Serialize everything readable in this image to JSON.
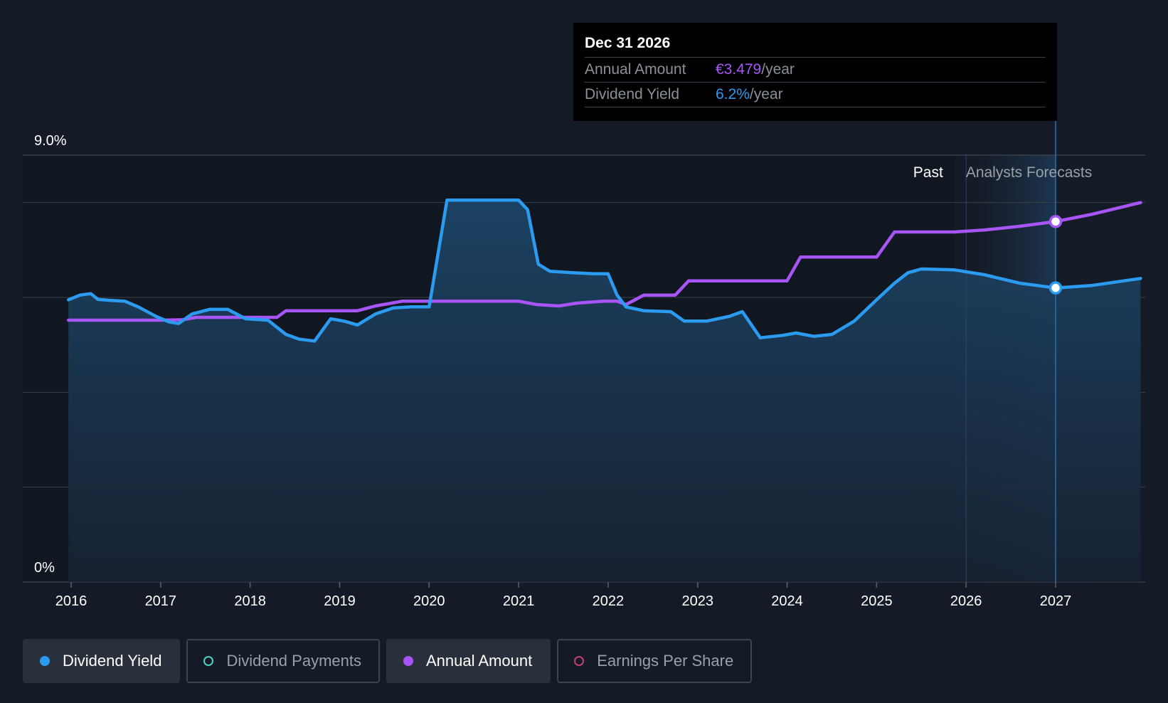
{
  "colors": {
    "background": "#151b26",
    "dividend_yield": "#2b9bf0",
    "annual_amount": "#a855f7",
    "dividend_payments": "#4fd1c5",
    "earnings_per_share": "#c2416b",
    "grid": "#3a404a",
    "text": "#ffffff",
    "muted": "#9aa0a8"
  },
  "tooltip": {
    "date": "Dec 31 2026",
    "rows": [
      {
        "label": "Annual Amount",
        "value": "€3.479",
        "unit": "/year"
      },
      {
        "label": "Dividend Yield",
        "value": "6.2%",
        "unit": "/year"
      }
    ]
  },
  "regions": {
    "past_label": "Past",
    "forecast_label": "Analysts Forecasts"
  },
  "legend": [
    {
      "label": "Dividend Yield",
      "active": true,
      "filled": true,
      "color": "#2b9bf0"
    },
    {
      "label": "Dividend Payments",
      "active": false,
      "filled": false,
      "color": "#4fd1c5"
    },
    {
      "label": "Annual Amount",
      "active": true,
      "filled": true,
      "color": "#a855f7"
    },
    {
      "label": "Earnings Per Share",
      "active": false,
      "filled": false,
      "color": "#c2416b"
    }
  ],
  "chart_data": {
    "type": "line",
    "title": "",
    "xlabel": "",
    "ylabel": "",
    "x_ticks": [
      "2016",
      "2017",
      "2018",
      "2019",
      "2020",
      "2021",
      "2022",
      "2023",
      "2024",
      "2025",
      "2026",
      "2027"
    ],
    "xlim": [
      2015.97,
      2027.95
    ],
    "ylim": [
      0,
      9.0
    ],
    "y_tick_labels": [
      {
        "value": 9.0,
        "label": "9.0%"
      },
      {
        "value": 0,
        "label": "0%"
      }
    ],
    "gridlines": [
      0,
      2,
      4,
      6,
      8,
      9
    ],
    "forecast_start": 2025.87,
    "highlight_start": 2026.0,
    "highlight_x": 2027.0,
    "legend_position": "bottom",
    "series": [
      {
        "name": "Dividend Yield",
        "unit": "%",
        "area": true,
        "highlight": 6.2,
        "points": [
          [
            2015.97,
            5.95
          ],
          [
            2016.1,
            6.05
          ],
          [
            2016.22,
            6.08
          ],
          [
            2016.3,
            5.96
          ],
          [
            2016.42,
            5.94
          ],
          [
            2016.6,
            5.92
          ],
          [
            2016.75,
            5.8
          ],
          [
            2016.95,
            5.6
          ],
          [
            2017.1,
            5.48
          ],
          [
            2017.2,
            5.45
          ],
          [
            2017.35,
            5.65
          ],
          [
            2017.55,
            5.75
          ],
          [
            2017.75,
            5.75
          ],
          [
            2017.95,
            5.55
          ],
          [
            2018.2,
            5.52
          ],
          [
            2018.4,
            5.22
          ],
          [
            2018.55,
            5.12
          ],
          [
            2018.72,
            5.08
          ],
          [
            2018.9,
            5.55
          ],
          [
            2019.05,
            5.5
          ],
          [
            2019.2,
            5.42
          ],
          [
            2019.4,
            5.65
          ],
          [
            2019.6,
            5.78
          ],
          [
            2019.8,
            5.8
          ],
          [
            2020.0,
            5.8
          ],
          [
            2020.2,
            8.05
          ],
          [
            2020.4,
            8.05
          ],
          [
            2020.6,
            8.05
          ],
          [
            2020.8,
            8.05
          ],
          [
            2021.0,
            8.05
          ],
          [
            2021.1,
            7.85
          ],
          [
            2021.22,
            6.7
          ],
          [
            2021.35,
            6.55
          ],
          [
            2021.6,
            6.52
          ],
          [
            2021.85,
            6.5
          ],
          [
            2022.0,
            6.5
          ],
          [
            2022.1,
            6.05
          ],
          [
            2022.2,
            5.8
          ],
          [
            2022.4,
            5.72
          ],
          [
            2022.7,
            5.7
          ],
          [
            2022.85,
            5.5
          ],
          [
            2023.1,
            5.5
          ],
          [
            2023.35,
            5.6
          ],
          [
            2023.5,
            5.7
          ],
          [
            2023.7,
            5.15
          ],
          [
            2023.95,
            5.2
          ],
          [
            2024.1,
            5.25
          ],
          [
            2024.3,
            5.18
          ],
          [
            2024.5,
            5.22
          ],
          [
            2024.75,
            5.5
          ],
          [
            2025.0,
            5.95
          ],
          [
            2025.2,
            6.3
          ],
          [
            2025.35,
            6.52
          ],
          [
            2025.5,
            6.6
          ],
          [
            2025.87,
            6.58
          ],
          [
            2026.2,
            6.48
          ],
          [
            2026.6,
            6.3
          ],
          [
            2027.0,
            6.2
          ],
          [
            2027.4,
            6.25
          ],
          [
            2027.95,
            6.4
          ]
        ]
      },
      {
        "name": "Annual Amount",
        "area": false,
        "highlight": 3.479,
        "points": [
          [
            2015.97,
            5.52
          ],
          [
            2016.5,
            5.52
          ],
          [
            2017.0,
            5.52
          ],
          [
            2017.25,
            5.53
          ],
          [
            2017.4,
            5.58
          ],
          [
            2017.7,
            5.58
          ],
          [
            2018.1,
            5.58
          ],
          [
            2018.3,
            5.58
          ],
          [
            2018.4,
            5.72
          ],
          [
            2018.8,
            5.72
          ],
          [
            2019.0,
            5.72
          ],
          [
            2019.2,
            5.72
          ],
          [
            2019.4,
            5.82
          ],
          [
            2019.7,
            5.92
          ],
          [
            2020.0,
            5.92
          ],
          [
            2020.5,
            5.92
          ],
          [
            2021.0,
            5.92
          ],
          [
            2021.2,
            5.85
          ],
          [
            2021.45,
            5.82
          ],
          [
            2021.65,
            5.88
          ],
          [
            2021.95,
            5.92
          ],
          [
            2022.1,
            5.92
          ],
          [
            2022.2,
            5.85
          ],
          [
            2022.4,
            6.05
          ],
          [
            2022.75,
            6.05
          ],
          [
            2022.9,
            6.35
          ],
          [
            2023.3,
            6.35
          ],
          [
            2023.7,
            6.35
          ],
          [
            2024.0,
            6.35
          ],
          [
            2024.15,
            6.85
          ],
          [
            2024.5,
            6.85
          ],
          [
            2025.0,
            6.85
          ],
          [
            2025.2,
            7.38
          ],
          [
            2025.6,
            7.38
          ],
          [
            2025.87,
            7.38
          ],
          [
            2026.2,
            7.42
          ],
          [
            2026.6,
            7.5
          ],
          [
            2027.0,
            7.6
          ],
          [
            2027.4,
            7.75
          ],
          [
            2027.95,
            8.0
          ]
        ]
      }
    ]
  }
}
